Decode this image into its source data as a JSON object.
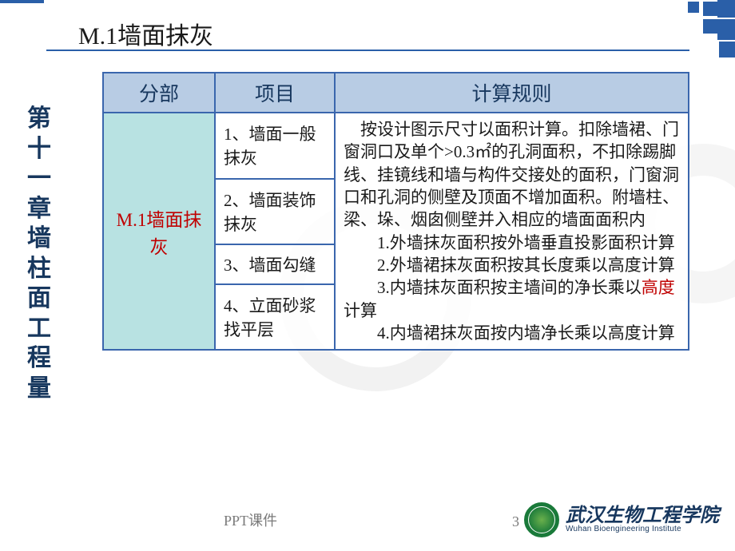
{
  "page_title": "M.1墙面抹灰",
  "side_title": "第十一章 墙柱面工程量",
  "table": {
    "headers": [
      "分部",
      "项目",
      "计算规则"
    ],
    "section_label": "M.1墙面抹灰",
    "items": [
      "1、墙面一般抹灰",
      "2、墙面装饰抹灰",
      "3、墙面勾缝",
      "4、立面砂浆找平层"
    ],
    "rule_main": "按设计图示尺寸以面积计算。扣除墙裙、门窗洞口及单个>0.3㎡的孔洞面积，不扣除踢脚线、挂镜线和墙与构件交接处的面积，门窗洞口和孔洞的侧壁及顶面不增加面积。附墙柱、梁、垛、烟囱侧壁并入相应的墙面面积内",
    "rule_sub1": "1.外墙抹灰面积按外墙垂直投影面积计算",
    "rule_sub2": "2.外墙裙抹灰面积按其长度乘以高度计算",
    "rule_sub3_a": "3.内墙抹灰面积按主墙间的净长乘以",
    "rule_sub3_hl": "高度",
    "rule_sub3_b": "计算",
    "rule_sub4": "4.内墙裙抹灰面按内墙净长乘以高度计算"
  },
  "footer": {
    "label": "PPT课件",
    "page_number": "3",
    "university_cn": "武汉生物工程学院",
    "university_en": "Wuhan Bioengineering Institute"
  },
  "colors": {
    "header_bg": "#b8cce4",
    "section_bg": "#b8e2e2",
    "border": "#3a66ad",
    "accent": "#2a5fa8",
    "highlight": "#c00000",
    "side_text": "#17375e"
  }
}
